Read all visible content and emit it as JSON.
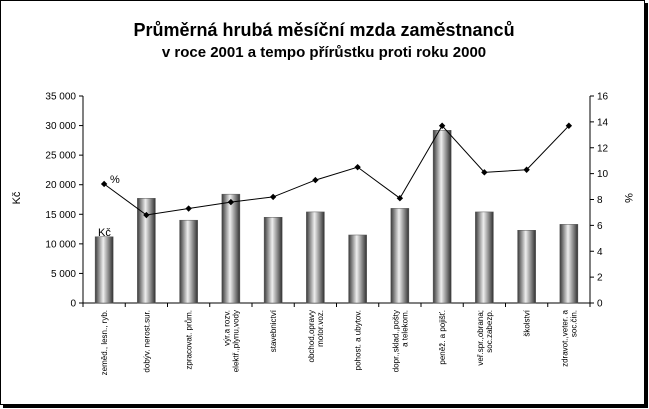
{
  "chart_data": {
    "type": "bar",
    "title": "Průměrná hrubá měsíční mzda zaměstnanců",
    "subtitle": "v roce 2001 a tempo přírůstku proti roku 2000",
    "ylabel": "Kč",
    "y2label": "%",
    "ylim": [
      0,
      35000
    ],
    "y2lim": [
      0,
      16
    ],
    "yticks": [
      "0",
      "5 000",
      "10 000",
      "15 000",
      "20 000",
      "25 000",
      "30 000",
      "35 000"
    ],
    "y2ticks": [
      "0",
      "2",
      "4",
      "6",
      "8",
      "10",
      "12",
      "14",
      "16"
    ],
    "grid": false,
    "categories": [
      [
        "zeměd., lesn., ryb."
      ],
      [
        "dobýv. nerost.sur."
      ],
      [
        "zpracovat. prům."
      ],
      [
        "výr.a rozv.",
        "elektř.,plynu,vody"
      ],
      [
        "stavebnictví"
      ],
      [
        "obchod,opravy",
        "motor.voz."
      ],
      [
        "pohost. a ubytov."
      ],
      [
        "dopr.,sklad.,pošty",
        "a telekom."
      ],
      [
        "peněž. a pojišť."
      ],
      [
        "veř.spr.,obrana;",
        "soc.zabezp."
      ],
      [
        "školství"
      ],
      [
        "zdravot.,veter. a",
        "soc.čin."
      ]
    ],
    "series": [
      {
        "name": "Kč",
        "type": "bar",
        "axis": "left",
        "values": [
          11200,
          17700,
          14000,
          18400,
          14500,
          15400,
          11500,
          16000,
          29200,
          15400,
          12300,
          13300
        ]
      },
      {
        "name": "%",
        "type": "line",
        "axis": "right",
        "values": [
          9.2,
          6.8,
          7.3,
          7.8,
          8.2,
          9.5,
          10.5,
          8.1,
          13.7,
          10.1,
          10.3,
          13.7
        ]
      }
    ]
  }
}
